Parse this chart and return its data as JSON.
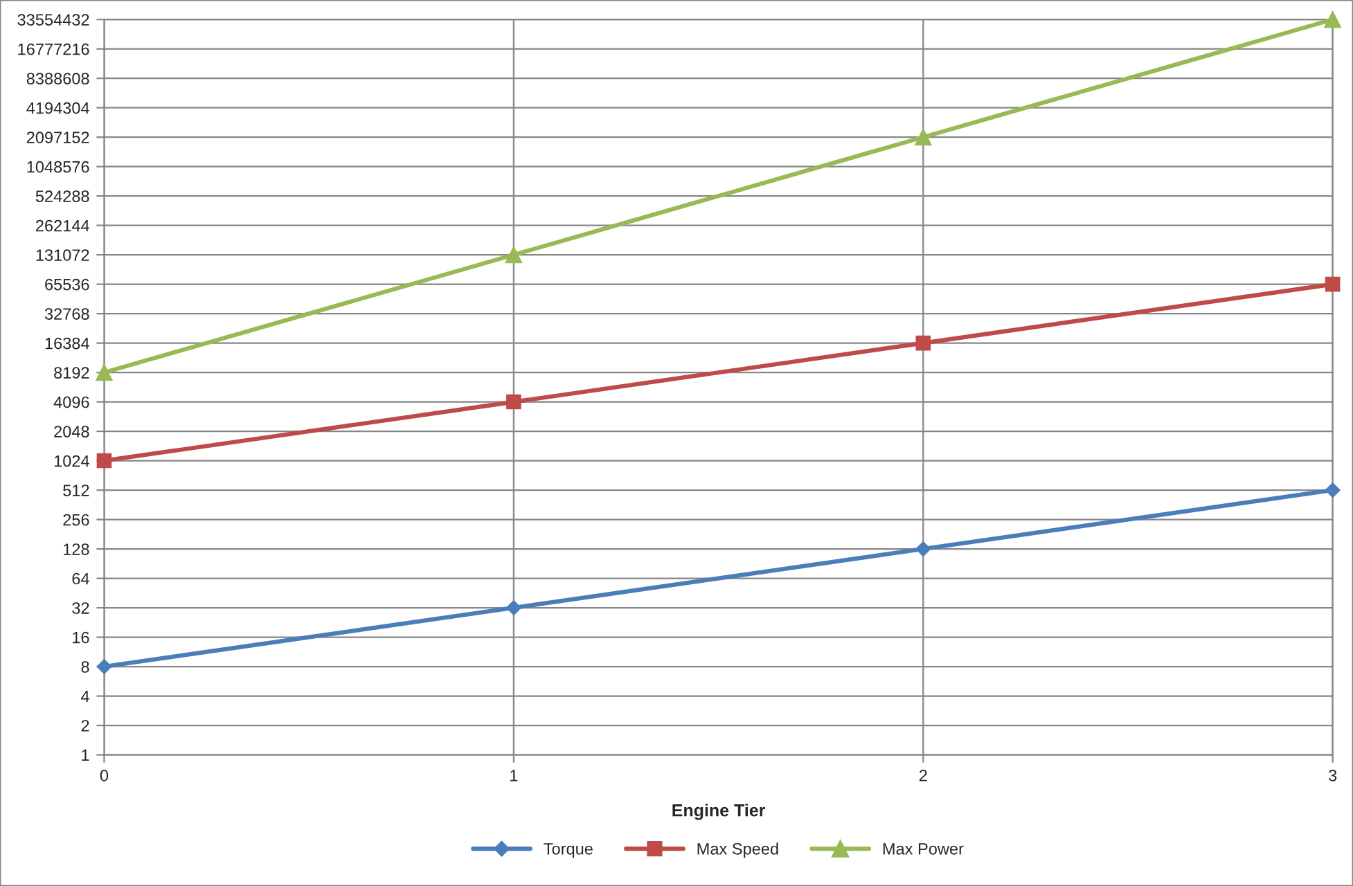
{
  "chart_data": {
    "type": "line",
    "xlabel": "Engine Tier",
    "x": [
      0,
      1,
      2,
      3
    ],
    "xlim": [
      0,
      3
    ],
    "xticks": [
      0,
      1,
      2,
      3
    ],
    "log": "y",
    "ylim": [
      1,
      33554432
    ],
    "yticks": [
      1,
      2,
      4,
      8,
      16,
      32,
      64,
      128,
      256,
      512,
      1024,
      2048,
      4096,
      8192,
      16384,
      32768,
      65536,
      131072,
      262144,
      524288,
      1048576,
      2097152,
      4194304,
      8388608,
      16777216,
      33554432
    ],
    "grid": true,
    "legend": "bottom",
    "line_style": "solid",
    "series": [
      {
        "name": "Torque",
        "color": "#4a7ebb",
        "marker": "diamond",
        "values": [
          8,
          32,
          128,
          512
        ]
      },
      {
        "name": "Max Speed",
        "color": "#be4b48",
        "marker": "square",
        "values": [
          1024,
          4096,
          16384,
          65536
        ]
      },
      {
        "name": "Max Power",
        "color": "#98b954",
        "marker": "triangle",
        "values": [
          8192,
          131072,
          2097152,
          33554432
        ]
      }
    ]
  }
}
